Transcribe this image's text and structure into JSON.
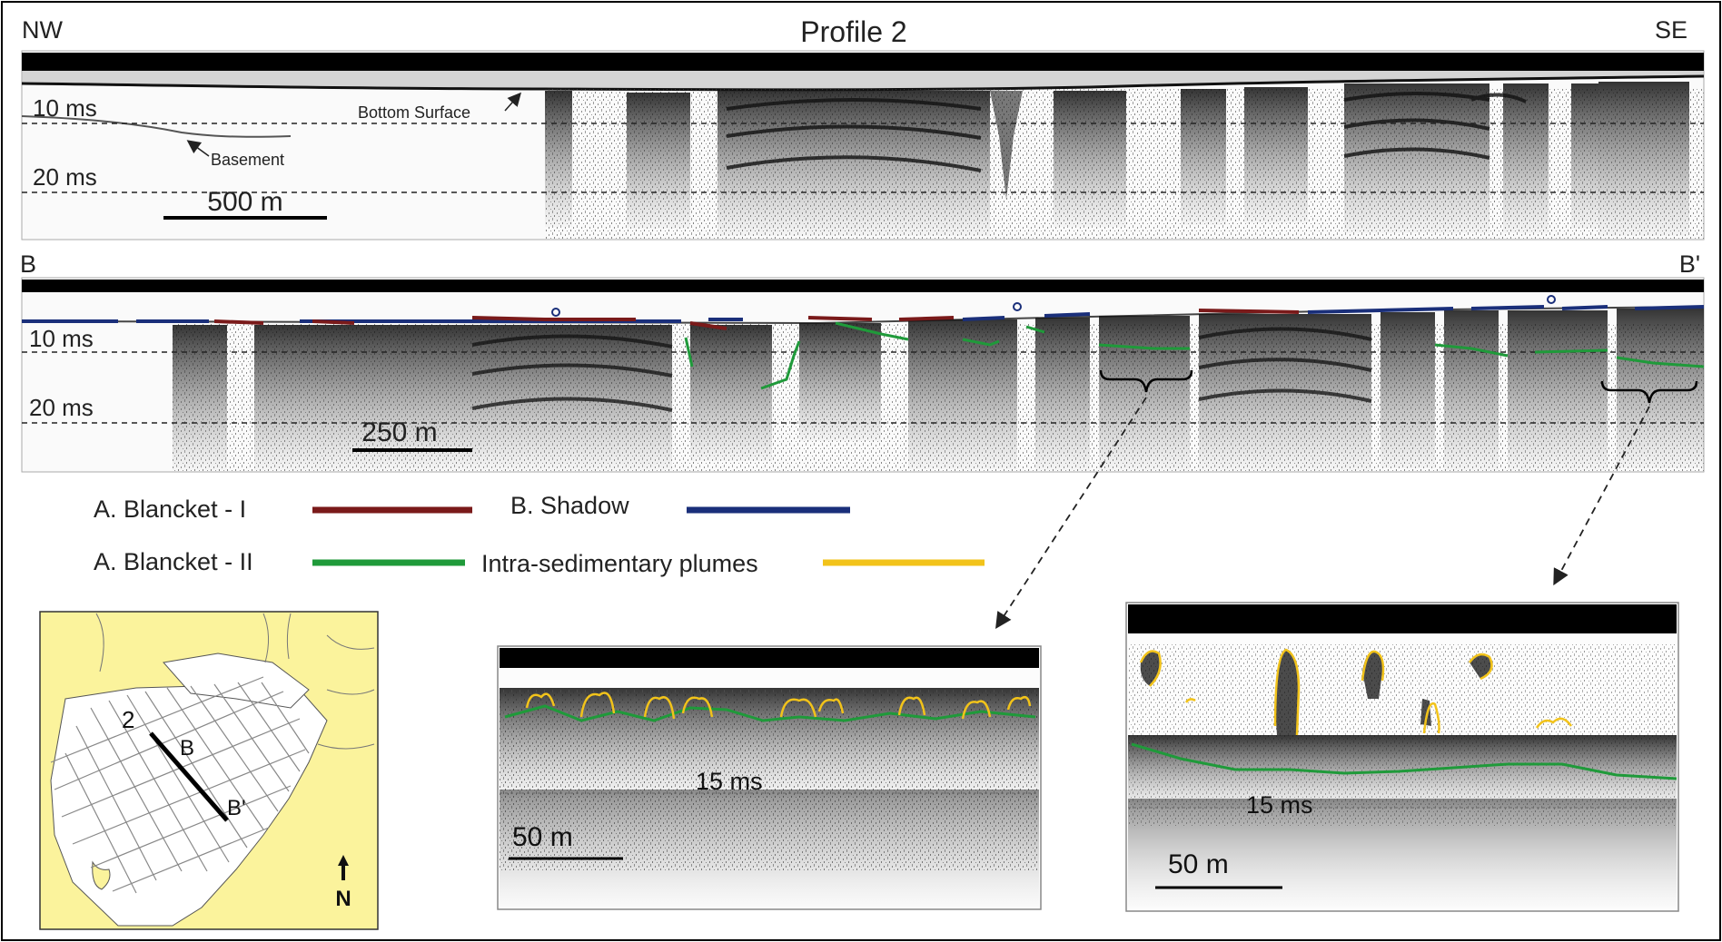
{
  "figure": {
    "title": "Profile 2",
    "nw_label": "NW",
    "se_label": "SE",
    "b_label": "B",
    "b_prime_label": "B'"
  },
  "top_profile": {
    "time_10": "10 ms",
    "time_20": "20 ms",
    "scale_label": "500 m",
    "bottom_surface_label": "Bottom Surface",
    "basement_label": "Basement"
  },
  "mid_profile": {
    "time_10": "10 ms",
    "time_20": "20 ms",
    "scale_label": "250 m"
  },
  "legend": {
    "blanket1_label": "A. Blancket - I",
    "shadow_label": "B. Shadow",
    "blanket2_label": "A. Blancket - II",
    "plumes_label": "Intra-sedimentary plumes"
  },
  "map": {
    "profile_number": "2",
    "b_label": "B",
    "b_prime_label": "B'",
    "north_label": "N"
  },
  "inset_left": {
    "time_label": "15 ms",
    "scale_label": "50 m"
  },
  "inset_right": {
    "time_label": "15 ms",
    "scale_label": "50 m"
  },
  "colors": {
    "blanket1": "#7a1a1a",
    "shadow": "#1a2f7a",
    "blanket2": "#1f9a3a",
    "plumes": "#f2c31a",
    "land": "#fbf39c"
  }
}
